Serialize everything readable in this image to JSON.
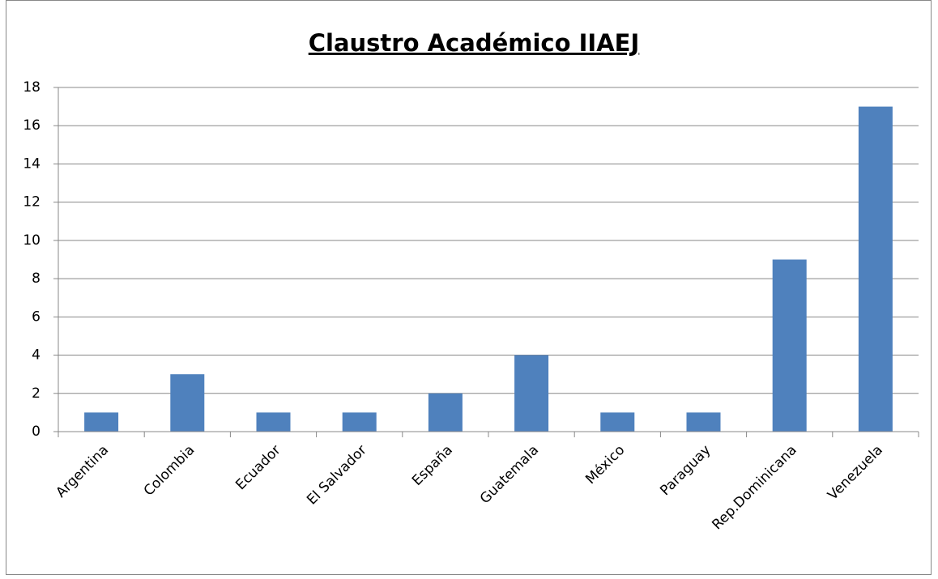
{
  "chart_data": {
    "type": "bar",
    "title": "Claustro Académico IIAEJ",
    "categories": [
      "Argentina",
      "Colombia",
      "Ecuador",
      "El Salvador",
      "España",
      "Guatemala",
      "México",
      "Paraguay",
      "Rep.Dominicana",
      "Venezuela"
    ],
    "values": [
      1,
      3,
      1,
      1,
      2,
      4,
      1,
      1,
      9,
      17
    ],
    "color": "#4f81bd",
    "ylim": [
      0,
      18
    ],
    "yticks": [
      0,
      2,
      4,
      6,
      8,
      10,
      12,
      14,
      16,
      18
    ],
    "grid": true
  }
}
